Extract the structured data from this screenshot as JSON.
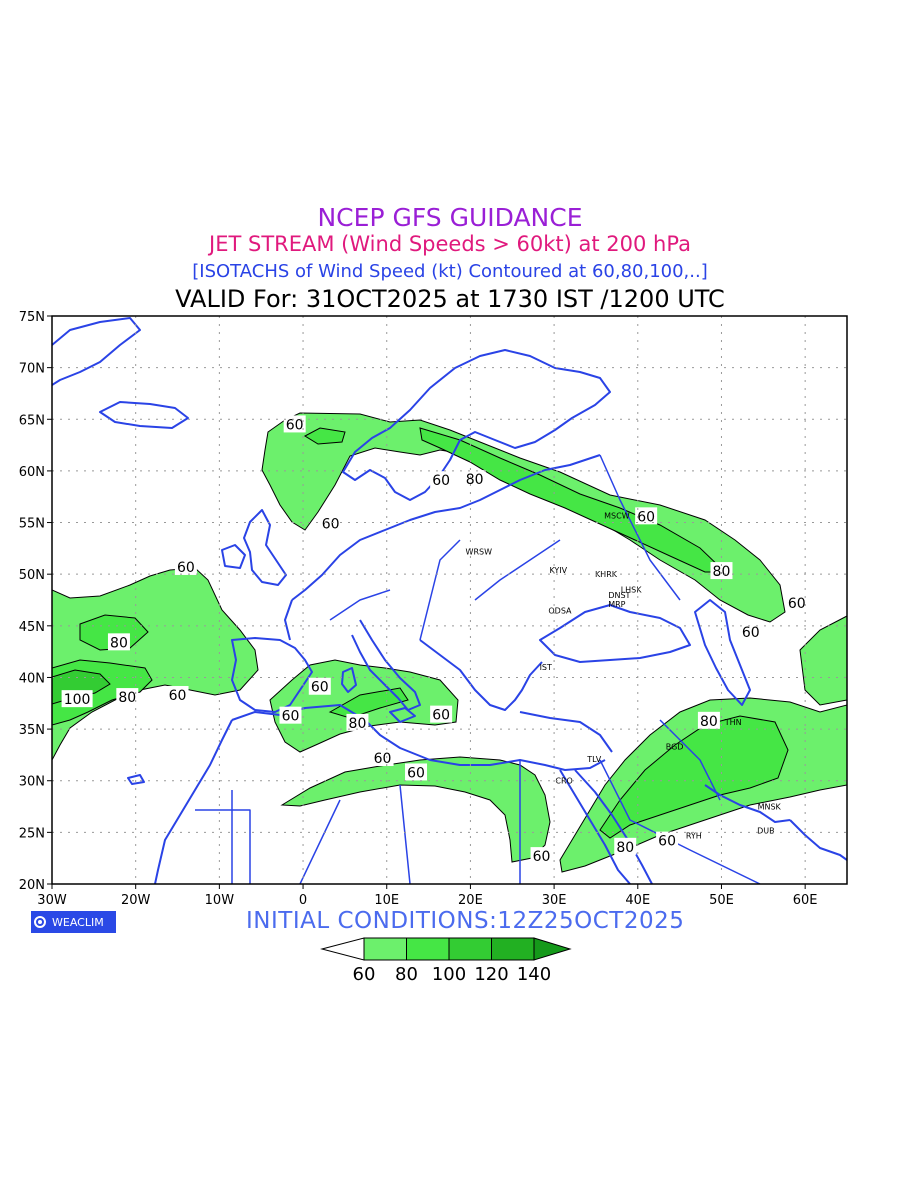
{
  "titles": {
    "line1": "NCEP GFS GUIDANCE",
    "line2": "JET STREAM (Wind Speeds > 60kt) at 200 hPa",
    "line3": "[ISOTACHS of Wind Speed (kt) Contoured at 60,80,100,..]",
    "line4": "VALID For: 31OCT2025 at 1730 IST /1200 UTC"
  },
  "map": {
    "lon_range": [
      -30,
      65
    ],
    "lat_range": [
      20,
      75
    ],
    "lat_ticks": [
      "20N",
      "25N",
      "30N",
      "35N",
      "40N",
      "45N",
      "50N",
      "55N",
      "60N",
      "65N",
      "70N",
      "75N"
    ],
    "lon_ticks": [
      "30W",
      "20W",
      "10W",
      "0",
      "10E",
      "20E",
      "30E",
      "40E",
      "50E",
      "60E"
    ],
    "grid": true,
    "colors": {
      "coast": "#2a43e6",
      "shade_60": "#6cf06c",
      "shade_80": "#45e645",
      "shade_100": "#33cc33",
      "shade_120": "#22b022",
      "shade_140": "#15991a"
    },
    "contour_labels": [
      {
        "text": "60",
        "lon": -1,
        "lat": 64.5
      },
      {
        "text": "60",
        "lon": 3.3,
        "lat": 54.9
      },
      {
        "text": "60",
        "lon": 16.5,
        "lat": 59.1
      },
      {
        "text": "80",
        "lon": 20.5,
        "lat": 59.2
      },
      {
        "text": "60",
        "lon": 41,
        "lat": 55.6
      },
      {
        "text": "80",
        "lon": 50,
        "lat": 50.3
      },
      {
        "text": "60",
        "lon": 59,
        "lat": 47.2
      },
      {
        "text": "60",
        "lon": 53.5,
        "lat": 44.4
      },
      {
        "text": "60",
        "lon": -14,
        "lat": 50.7
      },
      {
        "text": "80",
        "lon": -22,
        "lat": 43.4
      },
      {
        "text": "100",
        "lon": -27,
        "lat": 37.9
      },
      {
        "text": "80",
        "lon": -21,
        "lat": 38.1
      },
      {
        "text": "60",
        "lon": -15,
        "lat": 38.3
      },
      {
        "text": "60",
        "lon": 2,
        "lat": 39.1
      },
      {
        "text": "60",
        "lon": -1.5,
        "lat": 36.3
      },
      {
        "text": "80",
        "lon": 6.5,
        "lat": 35.6
      },
      {
        "text": "60",
        "lon": 16.5,
        "lat": 36.4
      },
      {
        "text": "60",
        "lon": 9.5,
        "lat": 32.2
      },
      {
        "text": "60",
        "lon": 13.5,
        "lat": 30.8
      },
      {
        "text": "60",
        "lon": 28.5,
        "lat": 22.7
      },
      {
        "text": "80",
        "lon": 48.5,
        "lat": 35.8
      },
      {
        "text": "80",
        "lon": 38.5,
        "lat": 23.6
      },
      {
        "text": "60",
        "lon": 43.5,
        "lat": 24.2
      }
    ],
    "cities": [
      {
        "name": "WRSW",
        "lon": 21,
        "lat": 52.2
      },
      {
        "name": "MSCW",
        "lon": 37.5,
        "lat": 55.7
      },
      {
        "name": "KYIV",
        "lon": 30.5,
        "lat": 50.4
      },
      {
        "name": "KHRK",
        "lon": 36.2,
        "lat": 50
      },
      {
        "name": "LHSK",
        "lon": 39.2,
        "lat": 48.5
      },
      {
        "name": "DNST",
        "lon": 37.8,
        "lat": 48
      },
      {
        "name": "MRP",
        "lon": 37.5,
        "lat": 47.1
      },
      {
        "name": "ODSA",
        "lon": 30.7,
        "lat": 46.5
      },
      {
        "name": "IST",
        "lon": 29,
        "lat": 41
      },
      {
        "name": "TLV",
        "lon": 34.8,
        "lat": 32.1
      },
      {
        "name": "CRO",
        "lon": 31.2,
        "lat": 30
      },
      {
        "name": "THN",
        "lon": 51.4,
        "lat": 35.7
      },
      {
        "name": "BGD",
        "lon": 44.4,
        "lat": 33.3
      },
      {
        "name": "MNSK",
        "lon": 55.7,
        "lat": 27.5
      },
      {
        "name": "RYH",
        "lon": 46.7,
        "lat": 24.7
      },
      {
        "name": "DUB",
        "lon": 55.3,
        "lat": 25.2
      }
    ]
  },
  "footer": {
    "logo_text": "WEACLIM",
    "initial_conditions": "INITIAL  CONDITIONS:12Z25OCT2025"
  },
  "legend": {
    "labels": [
      "60",
      "80",
      "100",
      "120",
      "140"
    ],
    "colors": [
      "#6cf06c",
      "#45e645",
      "#33cc33",
      "#22b022",
      "#15991a"
    ]
  }
}
